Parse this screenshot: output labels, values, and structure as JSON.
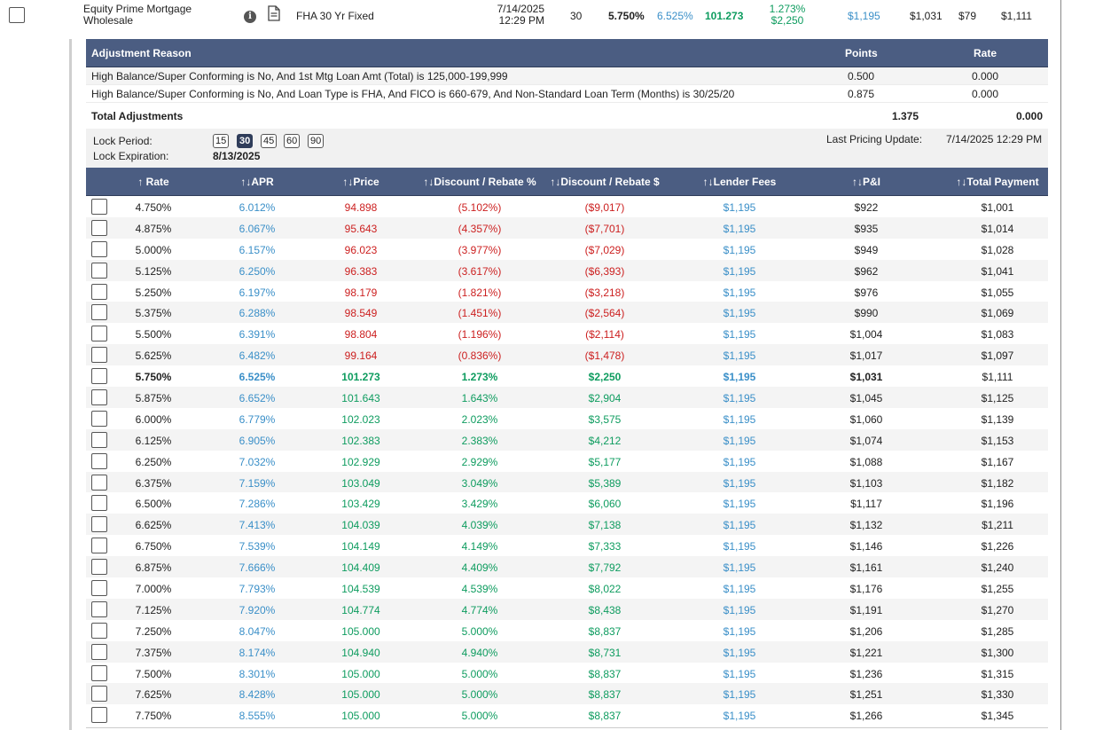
{
  "top": {
    "lender_line1": "Equity Prime Mortgage",
    "lender_line2": "Wholesale",
    "product": "FHA 30 Yr Fixed",
    "date": "7/14/2025",
    "time": "12:29 PM",
    "term": "30",
    "rate": "5.750%",
    "apr": "6.525%",
    "price": "101.273",
    "discount_pct": "1.273%",
    "discount_amt": "$2,250",
    "lender_fees": "$1,195",
    "pi": "$1,031",
    "mi": "$79",
    "total": "$1,111"
  },
  "adjustments": {
    "header": {
      "reason": "Adjustment Reason",
      "points": "Points",
      "rate": "Rate"
    },
    "rows": [
      {
        "reason": "High Balance/Super Conforming is No, And 1st Mtg Loan Amt (Total) is 125,000-199,999",
        "points": "0.500",
        "rate": "0.000"
      },
      {
        "reason": "High Balance/Super Conforming is No, And Loan Type is FHA, And FICO is 660-679, And Non-Standard Loan Term (Months) is 30/25/20",
        "points": "0.875",
        "rate": "0.000"
      }
    ],
    "total_label": "Total Adjustments",
    "total_points": "1.375",
    "total_rate": "0.000"
  },
  "lock": {
    "period_label": "Lock Period:",
    "expiration_label": "Lock Expiration:",
    "expiration_value": "8/13/2025",
    "options": [
      "15",
      "30",
      "45",
      "60",
      "90"
    ],
    "selected": "30",
    "last_update_label": "Last Pricing Update:",
    "last_update_value": "7/14/2025 12:29 PM"
  },
  "grid": {
    "headers": {
      "rate": "↑ Rate",
      "apr": "↑↓APR",
      "price": "↑↓Price",
      "disc_pct": "↑↓Discount / Rebate %",
      "disc_amt": "↑↓Discount / Rebate $",
      "fees": "↑↓Lender Fees",
      "pi": "↑↓P&I",
      "total": "↑↓Total Payment"
    },
    "rows": [
      [
        "4.750%",
        "6.012%",
        "94.898",
        "(5.102%)",
        "($9,017)",
        "$1,195",
        "$922",
        "$1,001"
      ],
      [
        "4.875%",
        "6.067%",
        "95.643",
        "(4.357%)",
        "($7,701)",
        "$1,195",
        "$935",
        "$1,014"
      ],
      [
        "5.000%",
        "6.157%",
        "96.023",
        "(3.977%)",
        "($7,029)",
        "$1,195",
        "$949",
        "$1,028"
      ],
      [
        "5.125%",
        "6.250%",
        "96.383",
        "(3.617%)",
        "($6,393)",
        "$1,195",
        "$962",
        "$1,041"
      ],
      [
        "5.250%",
        "6.197%",
        "98.179",
        "(1.821%)",
        "($3,218)",
        "$1,195",
        "$976",
        "$1,055"
      ],
      [
        "5.375%",
        "6.288%",
        "98.549",
        "(1.451%)",
        "($2,564)",
        "$1,195",
        "$990",
        "$1,069"
      ],
      [
        "5.500%",
        "6.391%",
        "98.804",
        "(1.196%)",
        "($2,114)",
        "$1,195",
        "$1,004",
        "$1,083"
      ],
      [
        "5.625%",
        "6.482%",
        "99.164",
        "(0.836%)",
        "($1,478)",
        "$1,195",
        "$1,017",
        "$1,097"
      ],
      [
        "5.750%",
        "6.525%",
        "101.273",
        "1.273%",
        "$2,250",
        "$1,195",
        "$1,031",
        "$1,111"
      ],
      [
        "5.875%",
        "6.652%",
        "101.643",
        "1.643%",
        "$2,904",
        "$1,195",
        "$1,045",
        "$1,125"
      ],
      [
        "6.000%",
        "6.779%",
        "102.023",
        "2.023%",
        "$3,575",
        "$1,195",
        "$1,060",
        "$1,139"
      ],
      [
        "6.125%",
        "6.905%",
        "102.383",
        "2.383%",
        "$4,212",
        "$1,195",
        "$1,074",
        "$1,153"
      ],
      [
        "6.250%",
        "7.032%",
        "102.929",
        "2.929%",
        "$5,177",
        "$1,195",
        "$1,088",
        "$1,167"
      ],
      [
        "6.375%",
        "7.159%",
        "103.049",
        "3.049%",
        "$5,389",
        "$1,195",
        "$1,103",
        "$1,182"
      ],
      [
        "6.500%",
        "7.286%",
        "103.429",
        "3.429%",
        "$6,060",
        "$1,195",
        "$1,117",
        "$1,196"
      ],
      [
        "6.625%",
        "7.413%",
        "104.039",
        "4.039%",
        "$7,138",
        "$1,195",
        "$1,132",
        "$1,211"
      ],
      [
        "6.750%",
        "7.539%",
        "104.149",
        "4.149%",
        "$7,333",
        "$1,195",
        "$1,146",
        "$1,226"
      ],
      [
        "6.875%",
        "7.666%",
        "104.409",
        "4.409%",
        "$7,792",
        "$1,195",
        "$1,161",
        "$1,240"
      ],
      [
        "7.000%",
        "7.793%",
        "104.539",
        "4.539%",
        "$8,022",
        "$1,195",
        "$1,176",
        "$1,255"
      ],
      [
        "7.125%",
        "7.920%",
        "104.774",
        "4.774%",
        "$8,438",
        "$1,195",
        "$1,191",
        "$1,270"
      ],
      [
        "7.250%",
        "8.047%",
        "105.000",
        "5.000%",
        "$8,837",
        "$1,195",
        "$1,206",
        "$1,285"
      ],
      [
        "7.375%",
        "8.174%",
        "104.940",
        "4.940%",
        "$8,731",
        "$1,195",
        "$1,221",
        "$1,300"
      ],
      [
        "7.500%",
        "8.301%",
        "105.000",
        "5.000%",
        "$8,837",
        "$1,195",
        "$1,236",
        "$1,315"
      ],
      [
        "7.625%",
        "8.428%",
        "105.000",
        "5.000%",
        "$8,837",
        "$1,195",
        "$1,251",
        "$1,330"
      ],
      [
        "7.750%",
        "8.555%",
        "105.000",
        "5.000%",
        "$8,837",
        "$1,195",
        "$1,266",
        "$1,345"
      ]
    ],
    "best_row_index": 8
  },
  "colors": {
    "header_bg": "#4b5d82",
    "negative": "#cc1f1f",
    "positive": "#0e9c5f",
    "link_blue": "#3a8fc8"
  }
}
